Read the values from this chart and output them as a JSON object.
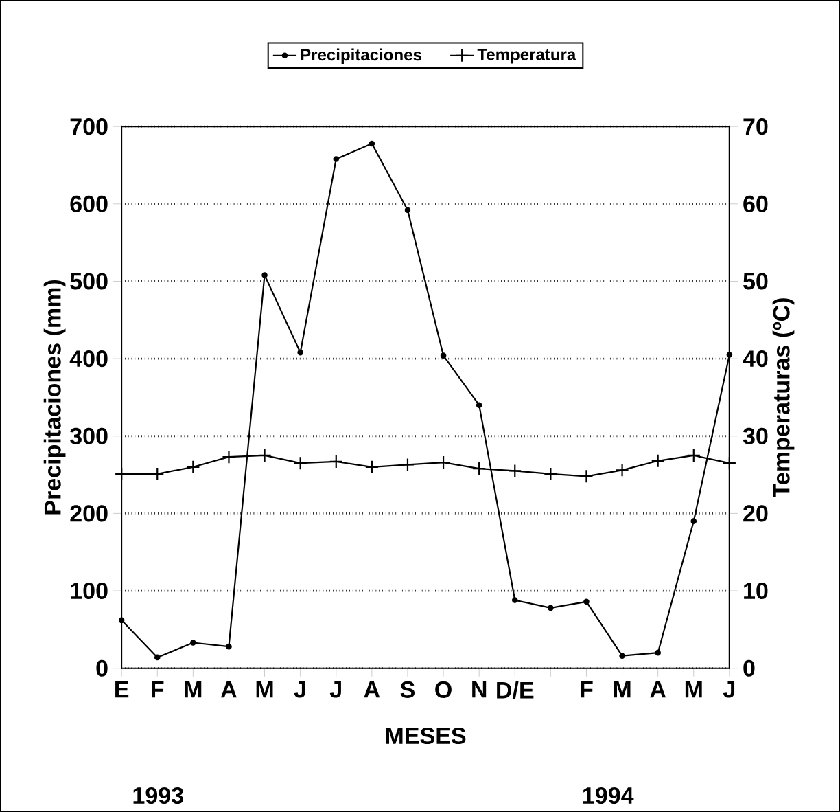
{
  "chart_data": {
    "type": "line",
    "categories": [
      "E",
      "F",
      "M",
      "A",
      "M",
      "J",
      "J",
      "A",
      "S",
      "O",
      "N",
      "D/E",
      null,
      "F",
      "M",
      "A",
      "M",
      "J"
    ],
    "series": [
      {
        "name": "Precipitaciones",
        "color": "#000000",
        "marker": "circle",
        "values": [
          62,
          14,
          33,
          28,
          508,
          408,
          658,
          678,
          592,
          404,
          340,
          88,
          78,
          86,
          16,
          20,
          190,
          405
        ]
      },
      {
        "name": "Temperatura",
        "color": "#000000",
        "marker": "cross",
        "axis": "y2",
        "values": [
          25.1,
          25.1,
          26.0,
          27.3,
          27.5,
          26.5,
          26.7,
          26.0,
          26.3,
          26.6,
          25.8,
          25.5,
          25.1,
          24.8,
          25.6,
          26.8,
          27.5,
          26.5
        ]
      }
    ],
    "xlabel": "MESES",
    "ylabel": "Precipitaciones (mm)",
    "y2label": "Temperaturas (ºC)",
    "ylim": [
      0,
      700
    ],
    "yticks": [
      0,
      100,
      200,
      300,
      400,
      500,
      600,
      700
    ],
    "y2lim": [
      0,
      70
    ],
    "y2ticks": [
      0,
      10,
      20,
      30,
      40,
      50,
      60,
      70
    ],
    "grid": "y",
    "legend": "top",
    "line_style": "solid",
    "annotations": [
      "1993",
      "1994"
    ]
  }
}
